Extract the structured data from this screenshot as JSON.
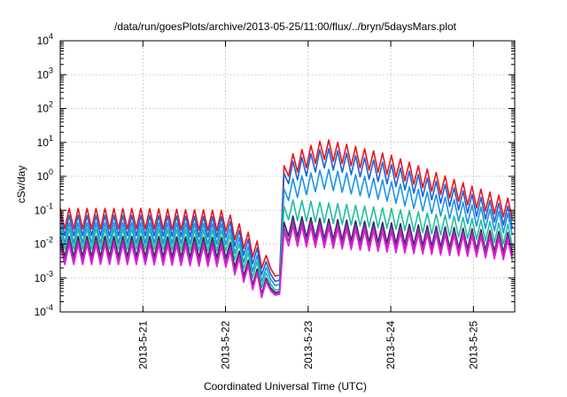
{
  "chart_data": {
    "type": "line",
    "title": "/data/run/goesPlots/archive/2013-05-25/11:00/flux/../bryn/5daysMars.plot",
    "xlabel": "Coordinated Universal Time (UTC)",
    "ylabel": "cSv/day",
    "yscale": "log",
    "ylim": [
      0.0001,
      10000
    ],
    "xlim": [
      "2013-05-20T00:00",
      "2013-05-25T12:00"
    ],
    "grid": true,
    "y_ticks": [
      {
        "base": "10",
        "exp": "-4",
        "value": 0.0001
      },
      {
        "base": "10",
        "exp": "-3",
        "value": 0.001
      },
      {
        "base": "10",
        "exp": "-2",
        "value": 0.01
      },
      {
        "base": "10",
        "exp": "-1",
        "value": 0.1
      },
      {
        "base": "10",
        "exp": "0",
        "value": 1
      },
      {
        "base": "10",
        "exp": "1",
        "value": 10
      },
      {
        "base": "10",
        "exp": "2",
        "value": 100
      },
      {
        "base": "10",
        "exp": "3",
        "value": 1000
      },
      {
        "base": "10",
        "exp": "4",
        "value": 10000
      }
    ],
    "x_ticks": [
      {
        "label": "2013-5-21",
        "value": "2013-05-21T00:00"
      },
      {
        "label": "2013-5-22",
        "value": "2013-05-22T00:00"
      },
      {
        "label": "2013-5-23",
        "value": "2013-05-23T00:00"
      },
      {
        "label": "2013-5-24",
        "value": "2013-05-24T00:00"
      },
      {
        "label": "2013-5-25",
        "value": "2013-05-25T00:00"
      }
    ],
    "series": [
      {
        "color": "#e8141c",
        "x": [
          "2013-05-20T00:00",
          "2013-05-21T00:00",
          "2013-05-22T00:00",
          "2013-05-22T09:36",
          "2013-05-22T15:36",
          "2013-05-22T17:02",
          "2013-05-23T04:48",
          "2013-05-24T00:00",
          "2013-05-25T00:00",
          "2013-05-25T12:00"
        ],
        "y": [
          0.08,
          0.08,
          0.07,
          0.008,
          0.0007,
          2.5,
          9,
          3,
          0.35,
          0.14
        ]
      },
      {
        "color": "#1a62d8",
        "x": [
          "2013-05-20T00:00",
          "2013-05-21T00:00",
          "2013-05-22T00:00",
          "2013-05-22T09:36",
          "2013-05-22T15:36",
          "2013-05-22T17:02",
          "2013-05-23T04:48",
          "2013-05-24T00:00",
          "2013-05-25T00:00",
          "2013-05-25T12:00"
        ],
        "y": [
          0.05,
          0.05,
          0.045,
          0.005,
          0.0005,
          1.5,
          5,
          1.6,
          0.2,
          0.08
        ]
      },
      {
        "color": "#1a94ea",
        "x": [
          "2013-05-20T00:00",
          "2013-05-21T00:00",
          "2013-05-22T00:00",
          "2013-05-22T09:36",
          "2013-05-22T15:36",
          "2013-05-22T17:02",
          "2013-05-23T04:48",
          "2013-05-24T00:00",
          "2013-05-25T00:00",
          "2013-05-25T12:00"
        ],
        "y": [
          0.03,
          0.03,
          0.028,
          0.003,
          0.0004,
          0.5,
          1.2,
          0.5,
          0.1,
          0.05
        ]
      },
      {
        "color": "#1fbf9e",
        "x": [
          "2013-05-20T00:00",
          "2013-05-21T00:00",
          "2013-05-22T00:00",
          "2013-05-22T09:36",
          "2013-05-22T15:36",
          "2013-05-22T17:02",
          "2013-05-23T04:48",
          "2013-05-24T00:00",
          "2013-05-25T00:00",
          "2013-05-25T12:00"
        ],
        "y": [
          0.02,
          0.02,
          0.018,
          0.002,
          0.0003,
          0.15,
          0.12,
          0.08,
          0.04,
          0.025
        ]
      },
      {
        "color": "#2a2a6a",
        "x": [
          "2013-05-20T00:00",
          "2013-05-21T00:00",
          "2013-05-22T00:00",
          "2013-05-22T09:36",
          "2013-05-22T15:36",
          "2013-05-22T17:02",
          "2013-05-23T04:48",
          "2013-05-24T00:00",
          "2013-05-25T00:00",
          "2013-05-25T12:00"
        ],
        "y": [
          0.012,
          0.012,
          0.011,
          0.0012,
          0.00028,
          0.05,
          0.04,
          0.03,
          0.02,
          0.015
        ]
      },
      {
        "color": "#a0309a",
        "x": [
          "2013-05-20T00:00",
          "2013-05-21T00:00",
          "2013-05-22T00:00",
          "2013-05-22T09:36",
          "2013-05-22T15:36",
          "2013-05-22T17:02",
          "2013-05-23T04:48",
          "2013-05-24T00:00",
          "2013-05-25T00:00",
          "2013-05-25T12:00"
        ],
        "y": [
          0.009,
          0.009,
          0.008,
          0.001,
          0.00026,
          0.035,
          0.03,
          0.022,
          0.016,
          0.012
        ]
      },
      {
        "color": "#e21ce0",
        "x": [
          "2013-05-20T00:00",
          "2013-05-21T00:00",
          "2013-05-22T00:00",
          "2013-05-22T09:36",
          "2013-05-22T15:36",
          "2013-05-22T17:02",
          "2013-05-23T04:48",
          "2013-05-24T00:00",
          "2013-05-25T00:00",
          "2013-05-25T12:00"
        ],
        "y": [
          0.007,
          0.007,
          0.006,
          0.0009,
          0.00024,
          0.025,
          0.022,
          0.016,
          0.012,
          0.009
        ]
      }
    ]
  }
}
